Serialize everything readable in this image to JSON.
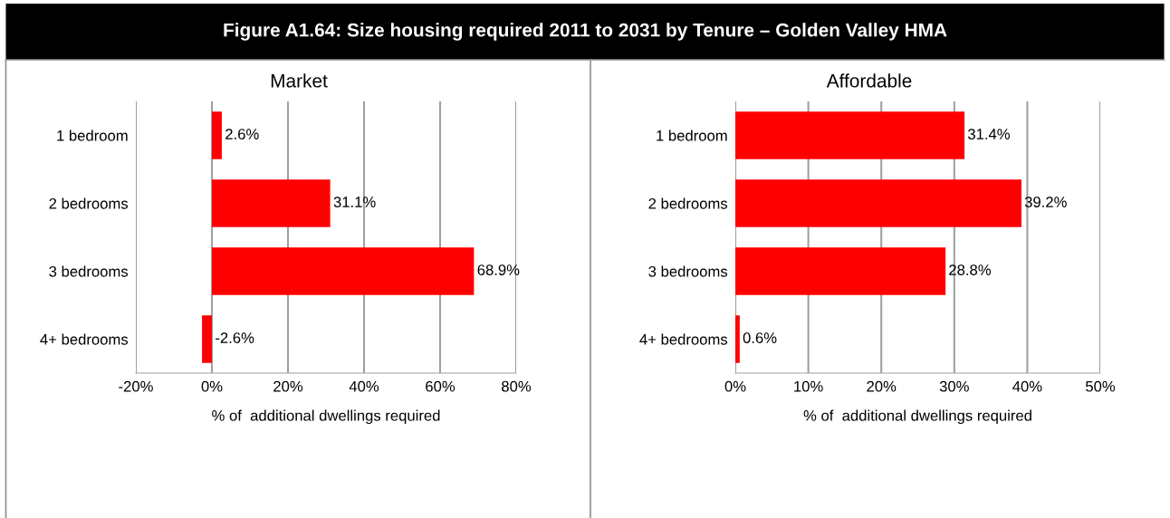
{
  "chart_data": [
    {
      "type": "bar",
      "orientation": "horizontal",
      "title": "Figure A1.64: Size housing required 2011 to 2031 by Tenure – Golden Valley HMA",
      "subtitle": "Market",
      "xlabel": "% of  additional dwellings required",
      "categories": [
        "1 bedroom",
        "2 bedrooms",
        "3 bedrooms",
        "4+ bedrooms"
      ],
      "values": [
        2.6,
        31.1,
        68.9,
        -2.6
      ],
      "color": "#ff0000",
      "value_labels": [
        "2.6%",
        "31.1%",
        "68.9%",
        "-2.6%"
      ],
      "xlim": [
        -20,
        80
      ],
      "xticks": [
        {
          "value": -20,
          "label": "-20%"
        },
        {
          "value": 0,
          "label": "0%"
        },
        {
          "value": 20,
          "label": "20%"
        },
        {
          "value": 40,
          "label": "40%"
        },
        {
          "value": 60,
          "label": "60%"
        },
        {
          "value": 80,
          "label": "80%"
        }
      ],
      "grid": "x",
      "legend": false
    },
    {
      "type": "bar",
      "orientation": "horizontal",
      "subtitle": "Affordable",
      "xlabel": "% of  additional dwellings required",
      "categories": [
        "1 bedroom",
        "2 bedrooms",
        "3 bedrooms",
        "4+ bedrooms"
      ],
      "values": [
        31.4,
        39.2,
        28.8,
        0.6
      ],
      "color": "#ff0000",
      "value_labels": [
        "31.4%",
        "39.2%",
        "28.8%",
        "0.6%"
      ],
      "xlim": [
        0,
        50
      ],
      "xticks": [
        {
          "value": 0,
          "label": "0%"
        },
        {
          "value": 10,
          "label": "10%"
        },
        {
          "value": 20,
          "label": "20%"
        },
        {
          "value": 30,
          "label": "30%"
        },
        {
          "value": 40,
          "label": "40%"
        },
        {
          "value": 50,
          "label": "50%"
        }
      ],
      "grid": "x",
      "legend": false
    }
  ]
}
